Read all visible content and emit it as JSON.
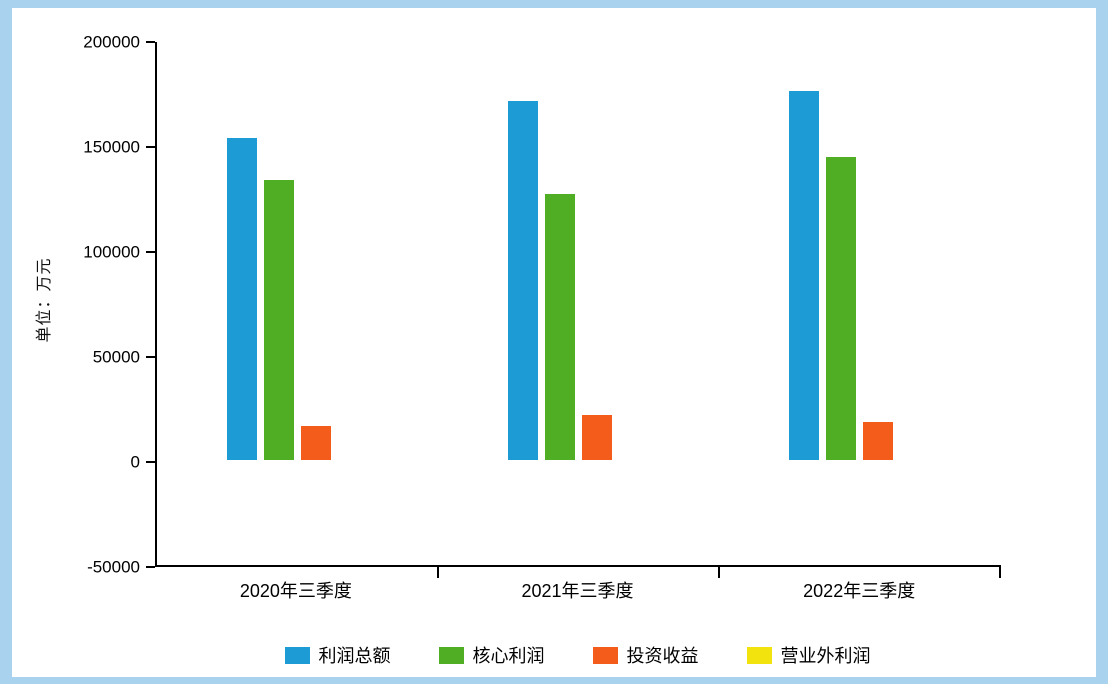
{
  "chart_data": {
    "type": "bar",
    "title": "",
    "ylabel": "单位：万元",
    "xlabel": "",
    "categories": [
      "2020年三季度",
      "2021年三季度",
      "2022年三季度"
    ],
    "series": [
      {
        "name": "利润总额",
        "color": "#1d9bd5",
        "values": [
          154000,
          172000,
          176500
        ]
      },
      {
        "name": "核心利润",
        "color": "#4fae23",
        "values": [
          134000,
          127500,
          145000
        ]
      },
      {
        "name": "投资收益",
        "color": "#f45c1b",
        "values": [
          16500,
          21500,
          18500
        ]
      },
      {
        "name": "营业外利润",
        "color": "#f2e20d",
        "values": [
          0,
          0,
          0
        ]
      }
    ],
    "ylim": [
      -50000,
      200000
    ],
    "yticks": [
      200000,
      150000,
      100000,
      50000,
      0,
      -50000
    ],
    "grid": false,
    "legend_position": "bottom"
  },
  "frame": {
    "border_color": "#a9d2ee",
    "background": "#ffffff"
  }
}
